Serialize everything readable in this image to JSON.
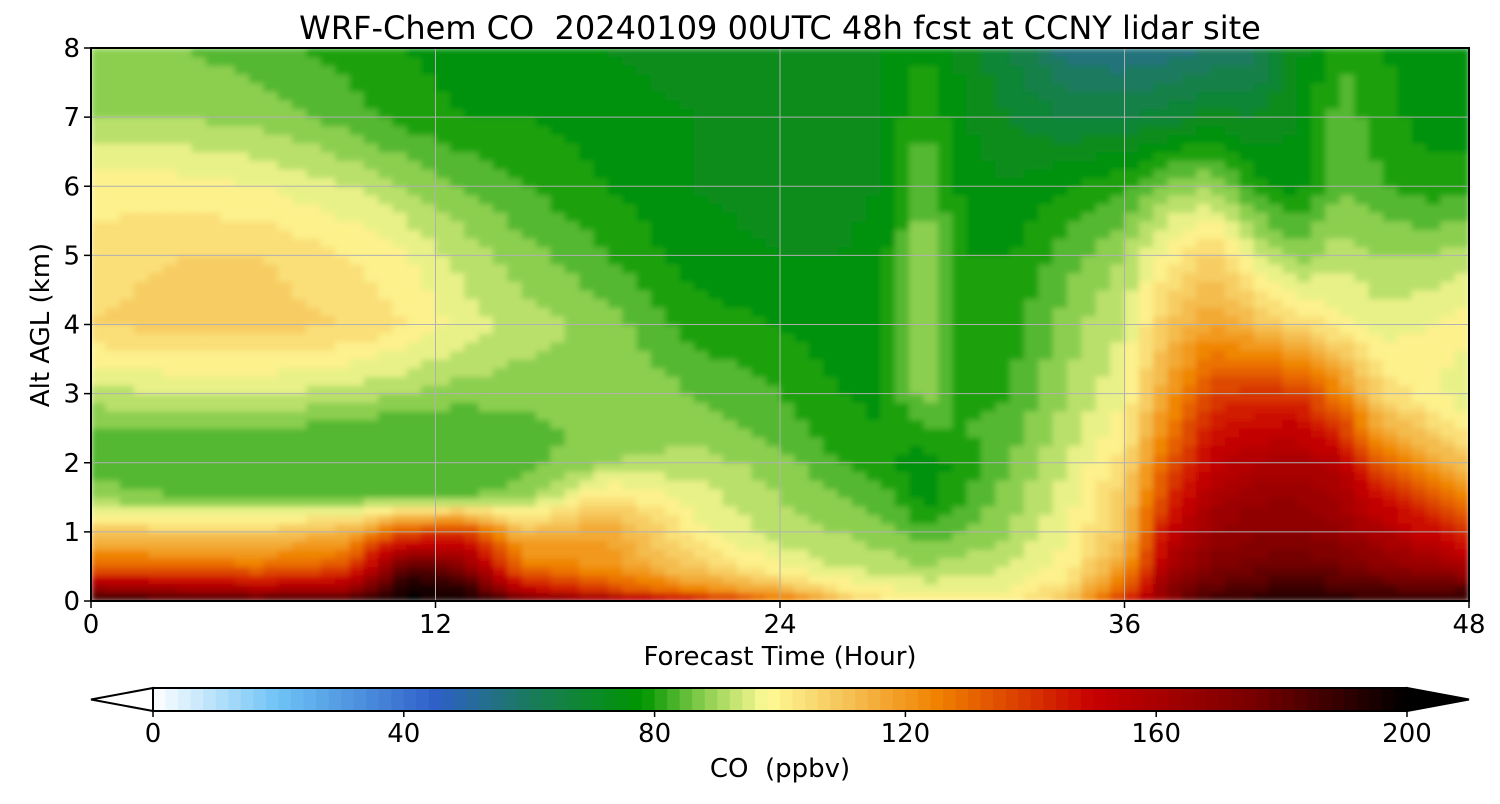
{
  "chart_data": {
    "type": "heatmap",
    "title": "WRF-Chem CO  20240109 00UTC 48h fcst at CCNY lidar site",
    "xlabel": "Forecast Time (Hour)",
    "ylabel": "Alt AGL (km)",
    "xlim": [
      0,
      48
    ],
    "ylim": [
      0,
      8
    ],
    "x_ticks": [
      0,
      12,
      24,
      36,
      48
    ],
    "x_tick_labels": [
      "0",
      "12",
      "24",
      "36",
      "48"
    ],
    "y_ticks": [
      0,
      1,
      2,
      3,
      4,
      5,
      6,
      7,
      8
    ],
    "y_tick_labels": [
      "0",
      "1",
      "2",
      "3",
      "4",
      "5",
      "6",
      "7",
      "8"
    ],
    "grid": true,
    "x": [
      0,
      3,
      6,
      9,
      11,
      13,
      15,
      18,
      21,
      24,
      26,
      27.5,
      29,
      30.5,
      32,
      34,
      36,
      37.5,
      39,
      40.5,
      42,
      43.5,
      45,
      46.5,
      48
    ],
    "y": [
      0,
      0.2,
      0.5,
      1,
      1.5,
      2,
      2.5,
      3,
      4,
      5,
      6,
      7,
      8
    ],
    "z": [
      [
        195,
        190,
        188,
        192,
        200,
        198,
        185,
        168,
        150,
        130,
        112,
        104,
        100,
        100,
        102,
        108,
        145,
        172,
        188,
        192,
        195,
        193,
        190,
        190,
        192
      ],
      [
        165,
        160,
        155,
        160,
        196,
        192,
        150,
        135,
        122,
        112,
        102,
        98,
        96,
        96,
        98,
        104,
        130,
        168,
        180,
        185,
        186,
        185,
        182,
        180,
        182
      ],
      [
        130,
        130,
        128,
        135,
        185,
        170,
        128,
        120,
        108,
        98,
        94,
        92,
        90,
        92,
        94,
        100,
        118,
        160,
        172,
        176,
        178,
        176,
        170,
        165,
        160
      ],
      [
        110,
        108,
        108,
        115,
        135,
        140,
        112,
        118,
        100,
        92,
        90,
        88,
        84,
        86,
        90,
        98,
        110,
        150,
        165,
        170,
        170,
        166,
        158,
        150,
        140
      ],
      [
        88,
        86,
        86,
        86,
        86,
        86,
        88,
        104,
        96,
        90,
        86,
        84,
        76,
        82,
        88,
        96,
        108,
        140,
        160,
        165,
        166,
        162,
        148,
        138,
        125
      ],
      [
        84,
        84,
        84,
        82,
        82,
        82,
        84,
        90,
        92,
        88,
        82,
        80,
        75,
        80,
        86,
        94,
        104,
        132,
        152,
        158,
        160,
        155,
        130,
        120,
        110
      ],
      [
        86,
        86,
        86,
        84,
        82,
        82,
        84,
        88,
        88,
        84,
        80,
        78,
        82,
        82,
        84,
        92,
        100,
        125,
        145,
        150,
        152,
        140,
        115,
        108,
        100
      ],
      [
        92,
        94,
        94,
        92,
        90,
        88,
        88,
        90,
        86,
        82,
        78,
        77,
        88,
        80,
        82,
        90,
        98,
        118,
        138,
        140,
        140,
        125,
        105,
        100,
        95
      ],
      [
        106,
        108,
        108,
        106,
        102,
        96,
        92,
        88,
        80,
        78,
        76,
        76,
        92,
        80,
        80,
        88,
        94,
        110,
        118,
        112,
        106,
        100,
        96,
        98,
        100
      ],
      [
        104,
        106,
        106,
        102,
        98,
        92,
        88,
        82,
        76,
        74,
        74,
        76,
        90,
        78,
        78,
        84,
        90,
        100,
        108,
        96,
        88,
        92,
        90,
        90,
        92
      ],
      [
        100,
        100,
        98,
        94,
        90,
        86,
        82,
        78,
        74,
        72,
        72,
        74,
        86,
        76,
        74,
        78,
        82,
        88,
        90,
        80,
        76,
        86,
        82,
        80,
        80
      ],
      [
        90,
        90,
        88,
        84,
        80,
        78,
        78,
        76,
        74,
        72,
        72,
        74,
        82,
        74,
        70,
        66,
        66,
        68,
        72,
        70,
        74,
        84,
        80,
        76,
        76
      ],
      [
        86,
        86,
        84,
        80,
        78,
        76,
        76,
        74,
        72,
        72,
        72,
        74,
        78,
        72,
        66,
        56,
        54,
        56,
        58,
        60,
        72,
        82,
        78,
        76,
        76
      ]
    ],
    "colorbar": {
      "label": "CO  (ppbv)",
      "min": 0,
      "max": 200,
      "ticks": [
        0,
        40,
        80,
        120,
        160,
        200
      ],
      "tick_labels": [
        "0",
        "40",
        "80",
        "120",
        "160",
        "200"
      ],
      "extend": "both",
      "stops": [
        {
          "v": 0,
          "c": "#ffffff"
        },
        {
          "v": 20,
          "c": "#6ec3f5"
        },
        {
          "v": 45,
          "c": "#2f60c8"
        },
        {
          "v": 60,
          "c": "#1a7a5e"
        },
        {
          "v": 78,
          "c": "#009500"
        },
        {
          "v": 88,
          "c": "#8ccf50"
        },
        {
          "v": 98,
          "c": "#fffa96"
        },
        {
          "v": 110,
          "c": "#f5c45a"
        },
        {
          "v": 125,
          "c": "#f08200"
        },
        {
          "v": 150,
          "c": "#c80000"
        },
        {
          "v": 175,
          "c": "#7a0000"
        },
        {
          "v": 200,
          "c": "#000000"
        }
      ]
    }
  }
}
